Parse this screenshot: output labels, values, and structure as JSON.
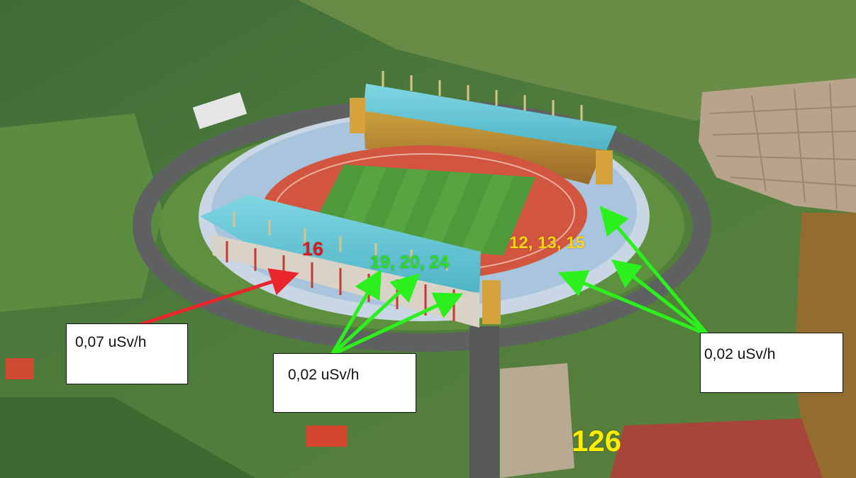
{
  "zone_labels": [
    {
      "text": "16",
      "color": "#e4141b"
    },
    {
      "text": "19, 20, 24",
      "color": "#2bdd1b"
    },
    {
      "text": "12, 13, 15",
      "color": "#ffd21a"
    },
    {
      "text": "126",
      "color": "#ffee00"
    }
  ],
  "callouts": [
    {
      "text": "0,07 uSv/h",
      "arrow_color": "#e8262b"
    },
    {
      "text": "0,02 uSv/h",
      "arrow_color": "#2cf01d"
    },
    {
      "text": "0,02 uSv/h",
      "arrow_color": "#2cf01d"
    }
  ],
  "colors": {
    "field": "#4e9a3a",
    "track": "#d2553f",
    "roof": "#64c6d6",
    "farmland": "#4f7d3c",
    "road": "#5e6062"
  }
}
